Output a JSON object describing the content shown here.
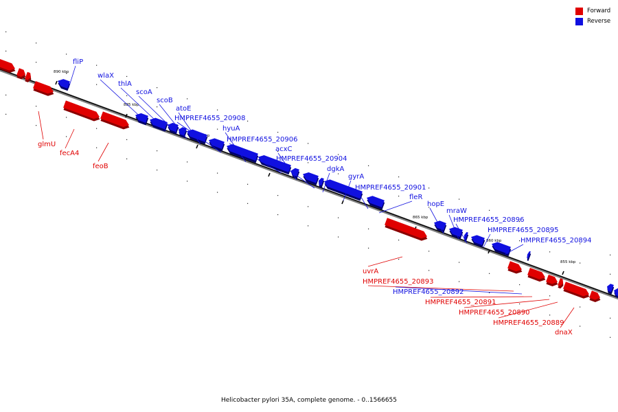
{
  "colors": {
    "forward": "#e00000",
    "reverse": "#1010e0"
  },
  "legend": [
    {
      "label": "Forward",
      "strand": "forward"
    },
    {
      "label": "Reverse",
      "strand": "reverse"
    }
  ],
  "ticks": [
    {
      "label": "890 kbp"
    },
    {
      "label": "885 kbp"
    },
    {
      "label": "880 kbp"
    },
    {
      "label": "875 kbp"
    },
    {
      "label": "870 kbp"
    },
    {
      "label": "865 kbp"
    },
    {
      "label": "860 kbp"
    },
    {
      "label": "855 kbp"
    }
  ],
  "genes": [
    {
      "name": "fliP",
      "strand": "reverse"
    },
    {
      "name": "wlaX",
      "strand": "reverse"
    },
    {
      "name": "thlA",
      "strand": "reverse"
    },
    {
      "name": "scoA",
      "strand": "reverse"
    },
    {
      "name": "scoB",
      "strand": "reverse"
    },
    {
      "name": "atoE",
      "strand": "reverse"
    },
    {
      "name": "HMPREF4655_20908",
      "strand": "reverse"
    },
    {
      "name": "hyuA",
      "strand": "reverse"
    },
    {
      "name": "HMPREF4655_20906",
      "strand": "reverse"
    },
    {
      "name": "acxC",
      "strand": "reverse"
    },
    {
      "name": "HMPREF4655_20904",
      "strand": "reverse"
    },
    {
      "name": "dgkA",
      "strand": "reverse"
    },
    {
      "name": "gyrA",
      "strand": "reverse"
    },
    {
      "name": "HMPREF4655_20901",
      "strand": "reverse"
    },
    {
      "name": "fleR",
      "strand": "reverse"
    },
    {
      "name": "hopE",
      "strand": "reverse"
    },
    {
      "name": "mraW",
      "strand": "reverse"
    },
    {
      "name": "HMPREF4655_20896",
      "strand": "reverse"
    },
    {
      "name": "HMPREF4655_20895",
      "strand": "reverse"
    },
    {
      "name": "HMPREF4655_20894",
      "strand": "reverse"
    },
    {
      "name": "glmU",
      "strand": "forward"
    },
    {
      "name": "fecA4",
      "strand": "forward"
    },
    {
      "name": "feoB",
      "strand": "forward"
    },
    {
      "name": "uvrA",
      "strand": "forward"
    },
    {
      "name": "HMPREF4655_20893",
      "strand": "forward"
    },
    {
      "name": "HMPREF4655_20892",
      "strand": "reverse"
    },
    {
      "name": "HMPREF4655_20891",
      "strand": "forward"
    },
    {
      "name": "HMPREF4655_20890",
      "strand": "forward"
    },
    {
      "name": "HMPREF4655_20889",
      "strand": "forward"
    },
    {
      "name": "dnaX",
      "strand": "forward"
    }
  ],
  "caption": "Helicobacter pylori 35A, complete genome. - 0..1566655"
}
